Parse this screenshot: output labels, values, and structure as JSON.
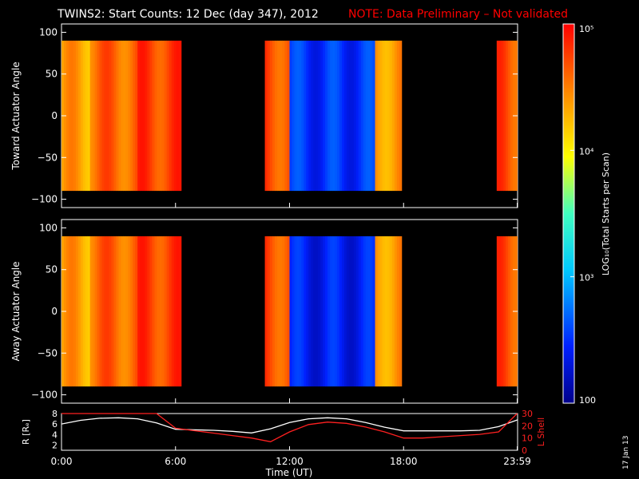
{
  "header": {
    "title": "TWINS2: Start Counts: 12 Dec (day 347), 2012",
    "note": "NOTE: Data Preliminary – Not validated",
    "note_color": "#ff0000"
  },
  "side_stamp": "17 Jan 13",
  "chart_data": [
    {
      "type": "heatmap",
      "name_label": "Toward Actuator Angle",
      "ylabel": "Toward Actuator Angle",
      "ylim": [
        -110,
        110
      ],
      "y_ticks": [
        "100",
        "50",
        "0",
        "−50",
        "−100"
      ],
      "y_tick_values": [
        100,
        50,
        0,
        -50,
        -100
      ],
      "y_data_range": [
        -90,
        90
      ],
      "xlim_hours": [
        0,
        24
      ],
      "data_blocks_hours": [
        [
          0,
          6.3
        ],
        [
          10.7,
          17.9
        ],
        [
          22.9,
          23.98
        ]
      ],
      "approx_log10_levels": [
        {
          "hours": [
            0.0,
            1.5
          ],
          "log10": 4.35
        },
        {
          "hours": [
            1.5,
            4.0
          ],
          "log10": 4.6
        },
        {
          "hours": [
            4.0,
            6.3
          ],
          "log10": 4.75
        },
        {
          "hours": [
            10.7,
            12.0
          ],
          "log10": 4.7
        },
        {
          "hours": [
            12.0,
            16.5
          ],
          "log10": 2.5
        },
        {
          "hours": [
            16.5,
            17.9
          ],
          "log10": 4.4
        },
        {
          "hours": [
            22.9,
            23.98
          ],
          "log10": 4.7
        }
      ]
    },
    {
      "type": "heatmap",
      "ylabel": "Away Actuator Angle",
      "ylim": [
        -110,
        110
      ],
      "y_ticks": [
        "100",
        "50",
        "0",
        "−50",
        "−100"
      ],
      "y_tick_values": [
        100,
        50,
        0,
        -50,
        -100
      ],
      "y_data_range": [
        -90,
        90
      ],
      "xlim_hours": [
        0,
        24
      ],
      "data_blocks_hours": [
        [
          0,
          6.3
        ],
        [
          10.7,
          17.9
        ],
        [
          22.9,
          23.98
        ]
      ],
      "approx_log10_levels": [
        {
          "hours": [
            0.0,
            1.5
          ],
          "log10": 4.35
        },
        {
          "hours": [
            1.5,
            4.0
          ],
          "log10": 4.6
        },
        {
          "hours": [
            4.0,
            6.3
          ],
          "log10": 4.75
        },
        {
          "hours": [
            10.7,
            12.0
          ],
          "log10": 4.7
        },
        {
          "hours": [
            12.0,
            16.5
          ],
          "log10": 2.4
        },
        {
          "hours": [
            16.5,
            17.9
          ],
          "log10": 4.4
        },
        {
          "hours": [
            22.9,
            23.98
          ],
          "log10": 4.7
        }
      ]
    },
    {
      "type": "line",
      "xlabel": "Time (UT)",
      "x_ticks": [
        "0:00",
        "6:00",
        "12:00",
        "18:00",
        "23:59"
      ],
      "x_tick_hours": [
        0,
        6,
        12,
        18,
        23.98
      ],
      "ylabel_left": "R [Rₑ]",
      "ylim_left": [
        1,
        8
      ],
      "y_ticks_left": [
        "8",
        "6",
        "4",
        "2"
      ],
      "ylabel_right": "L Shell",
      "ylim_right": [
        0,
        30
      ],
      "y_ticks_right": [
        "30",
        "20",
        "10",
        "0"
      ],
      "series": [
        {
          "name": "R [Rₑ]",
          "color": "#ffffff",
          "axis": "left",
          "x": [
            0,
            1,
            2,
            3,
            4,
            5,
            6,
            7,
            8,
            9,
            10,
            11,
            12,
            13,
            14,
            15,
            16,
            17,
            18,
            19,
            20,
            21,
            22,
            23,
            24
          ],
          "y": [
            6.0,
            6.7,
            7.1,
            7.2,
            7.0,
            6.2,
            5.0,
            4.9,
            4.8,
            4.6,
            4.3,
            5.1,
            6.3,
            7.0,
            7.2,
            7.0,
            6.3,
            5.4,
            4.7,
            4.7,
            4.7,
            4.7,
            4.8,
            5.5,
            6.8
          ]
        },
        {
          "name": "L Shell",
          "color": "#ff2020",
          "axis": "right",
          "x": [
            0,
            0.3,
            5.0,
            6.0,
            7,
            8,
            9,
            10,
            11,
            12,
            13,
            14,
            15,
            16,
            17,
            18,
            19,
            20,
            21,
            22,
            23,
            23.98
          ],
          "y": [
            30,
            30,
            30,
            18,
            16,
            14,
            12,
            10,
            7,
            15,
            21,
            23,
            22,
            19,
            15,
            10,
            10,
            11,
            12,
            13,
            15,
            30
          ]
        }
      ]
    },
    {
      "type": "colorbar",
      "label": "LOG₁₀(Total Starts per Scan)",
      "ticks": [
        "10⁵",
        "10⁴",
        "10³",
        "100"
      ],
      "tick_log10": [
        5,
        4,
        3,
        2
      ],
      "range_log10": [
        2,
        5
      ]
    }
  ]
}
